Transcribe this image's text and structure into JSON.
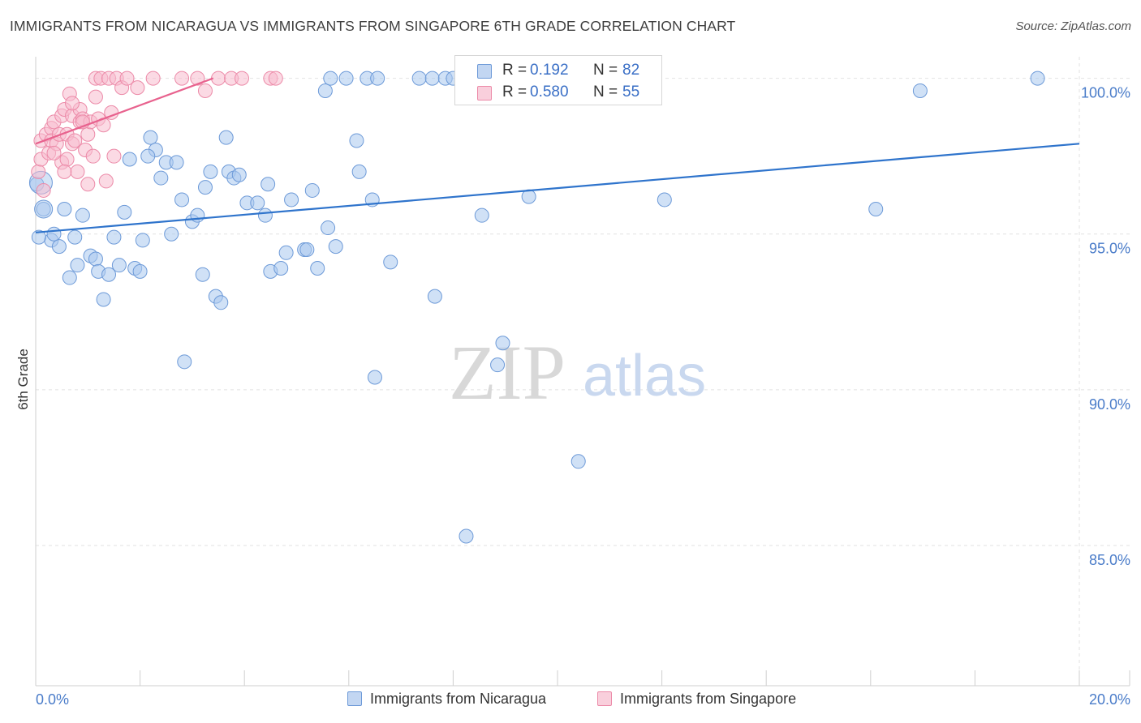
{
  "title": "IMMIGRANTS FROM NICARAGUA VS IMMIGRANTS FROM SINGAPORE 6TH GRADE CORRELATION CHART",
  "source": "Source: ZipAtlas.com",
  "watermark": {
    "zip": "ZIP",
    "atlas": "atlas"
  },
  "colors": {
    "blue_fill": "#aac8ee",
    "blue_stroke": "#6d9ad8",
    "blue_line": "#2f74cc",
    "pink_fill": "#f8bccd",
    "pink_stroke": "#ec8aa8",
    "pink_line": "#e8628e",
    "tick_text": "#4a7cc9",
    "grid": "#e2e2e2"
  },
  "stats": [
    {
      "r_label": "R =",
      "r_value": "0.192",
      "n_label": "N =",
      "n_value": "82"
    },
    {
      "r_label": "R =",
      "r_value": "0.580",
      "n_label": "N =",
      "n_value": "55"
    }
  ],
  "legend": [
    {
      "label": "Immigrants from Nicaragua"
    },
    {
      "label": "Immigrants from Singapore"
    }
  ],
  "chart_data": {
    "type": "scatter",
    "title": "IMMIGRANTS FROM NICARAGUA VS IMMIGRANTS FROM SINGAPORE 6TH GRADE CORRELATION CHART",
    "xlabel": "",
    "ylabel": "6th Grade",
    "xlim": [
      0,
      20
    ],
    "ylim": [
      80.5,
      100.9
    ],
    "x_tick_labels": [
      "0.0%",
      "20.0%"
    ],
    "y_ticks": [
      85,
      90,
      95,
      100
    ],
    "y_tick_labels": [
      "85.0%",
      "90.0%",
      "95.0%",
      "100.0%"
    ],
    "grid": true,
    "series": [
      {
        "name": "Immigrants from Nicaragua",
        "r": 0.192,
        "n": 82,
        "trend": [
          [
            0.0,
            95.05
          ],
          [
            20.0,
            97.9
          ]
        ],
        "points": [
          [
            0.15,
            95.8
          ],
          [
            0.3,
            94.8
          ],
          [
            0.35,
            95.0
          ],
          [
            0.45,
            94.6
          ],
          [
            0.55,
            95.8
          ],
          [
            0.65,
            93.6
          ],
          [
            0.75,
            94.9
          ],
          [
            0.8,
            94.0
          ],
          [
            0.9,
            95.6
          ],
          [
            1.05,
            94.3
          ],
          [
            1.15,
            94.2
          ],
          [
            1.2,
            93.8
          ],
          [
            1.3,
            92.9
          ],
          [
            1.4,
            93.7
          ],
          [
            1.5,
            94.9
          ],
          [
            1.6,
            94.0
          ],
          [
            1.7,
            95.7
          ],
          [
            1.8,
            97.4
          ],
          [
            1.9,
            93.9
          ],
          [
            2.0,
            93.8
          ],
          [
            2.05,
            94.8
          ],
          [
            2.2,
            98.1
          ],
          [
            2.3,
            97.7
          ],
          [
            2.4,
            96.8
          ],
          [
            2.5,
            97.3
          ],
          [
            2.6,
            95.0
          ],
          [
            2.7,
            97.3
          ],
          [
            2.8,
            96.1
          ],
          [
            2.85,
            90.9
          ],
          [
            3.0,
            95.4
          ],
          [
            3.1,
            95.6
          ],
          [
            3.2,
            93.7
          ],
          [
            3.25,
            96.5
          ],
          [
            3.35,
            97.0
          ],
          [
            3.45,
            93.0
          ],
          [
            3.55,
            92.8
          ],
          [
            3.65,
            98.1
          ],
          [
            3.7,
            97.0
          ],
          [
            3.8,
            96.8
          ],
          [
            3.9,
            96.9
          ],
          [
            4.05,
            96.0
          ],
          [
            4.25,
            96.0
          ],
          [
            4.4,
            95.6
          ],
          [
            4.5,
            93.8
          ],
          [
            4.45,
            96.6
          ],
          [
            4.7,
            93.9
          ],
          [
            4.8,
            94.4
          ],
          [
            4.9,
            96.1
          ],
          [
            5.15,
            94.5
          ],
          [
            5.2,
            94.5
          ],
          [
            5.3,
            96.4
          ],
          [
            5.4,
            93.9
          ],
          [
            5.55,
            99.6
          ],
          [
            5.6,
            95.2
          ],
          [
            5.65,
            100.0
          ],
          [
            5.75,
            94.6
          ],
          [
            5.95,
            100.0
          ],
          [
            6.15,
            98.0
          ],
          [
            6.2,
            97.0
          ],
          [
            6.35,
            100.0
          ],
          [
            6.45,
            96.1
          ],
          [
            6.5,
            90.4
          ],
          [
            6.55,
            100.0
          ],
          [
            6.8,
            94.1
          ],
          [
            7.35,
            100.0
          ],
          [
            7.6,
            100.0
          ],
          [
            7.65,
            93.0
          ],
          [
            7.85,
            100.0
          ],
          [
            8.0,
            100.0
          ],
          [
            8.25,
            85.3
          ],
          [
            8.55,
            95.6
          ],
          [
            8.85,
            90.8
          ],
          [
            8.95,
            91.5
          ],
          [
            9.45,
            96.2
          ],
          [
            10.4,
            87.7
          ],
          [
            12.05,
            96.1
          ],
          [
            16.1,
            95.8
          ],
          [
            16.95,
            99.6
          ],
          [
            19.2,
            100.0
          ],
          [
            0.02,
            96.6
          ],
          [
            0.06,
            94.9
          ],
          [
            2.15,
            97.5
          ]
        ]
      },
      {
        "name": "Immigrants from Singapore",
        "r": 0.58,
        "n": 55,
        "trend": [
          [
            0.0,
            97.9
          ],
          [
            3.4,
            100.0
          ]
        ],
        "points": [
          [
            0.05,
            97.0
          ],
          [
            0.1,
            97.4
          ],
          [
            0.1,
            98.0
          ],
          [
            0.15,
            96.4
          ],
          [
            0.2,
            98.2
          ],
          [
            0.25,
            97.6
          ],
          [
            0.3,
            98.4
          ],
          [
            0.3,
            98.0
          ],
          [
            0.35,
            98.6
          ],
          [
            0.4,
            97.9
          ],
          [
            0.45,
            98.2
          ],
          [
            0.5,
            98.8
          ],
          [
            0.5,
            97.3
          ],
          [
            0.55,
            99.0
          ],
          [
            0.6,
            98.2
          ],
          [
            0.6,
            97.4
          ],
          [
            0.65,
            99.5
          ],
          [
            0.7,
            98.8
          ],
          [
            0.7,
            97.9
          ],
          [
            0.75,
            98.0
          ],
          [
            0.8,
            97.0
          ],
          [
            0.85,
            98.6
          ],
          [
            0.85,
            99.0
          ],
          [
            0.9,
            98.7
          ],
          [
            0.95,
            97.7
          ],
          [
            1.0,
            98.2
          ],
          [
            1.0,
            96.6
          ],
          [
            1.05,
            98.6
          ],
          [
            1.1,
            97.5
          ],
          [
            1.15,
            99.4
          ],
          [
            1.15,
            100.0
          ],
          [
            1.2,
            98.7
          ],
          [
            1.25,
            100.0
          ],
          [
            1.3,
            98.5
          ],
          [
            1.35,
            96.7
          ],
          [
            1.4,
            100.0
          ],
          [
            1.45,
            98.9
          ],
          [
            1.5,
            97.5
          ],
          [
            1.55,
            100.0
          ],
          [
            1.65,
            99.7
          ],
          [
            1.75,
            100.0
          ],
          [
            1.95,
            99.7
          ],
          [
            2.25,
            100.0
          ],
          [
            2.8,
            100.0
          ],
          [
            3.1,
            100.0
          ],
          [
            3.25,
            99.6
          ],
          [
            3.5,
            100.0
          ],
          [
            3.75,
            100.0
          ],
          [
            3.95,
            100.0
          ],
          [
            4.5,
            100.0
          ],
          [
            4.6,
            100.0
          ],
          [
            0.35,
            97.6
          ],
          [
            0.55,
            97.0
          ],
          [
            0.7,
            99.2
          ],
          [
            0.9,
            98.6
          ]
        ]
      }
    ]
  }
}
